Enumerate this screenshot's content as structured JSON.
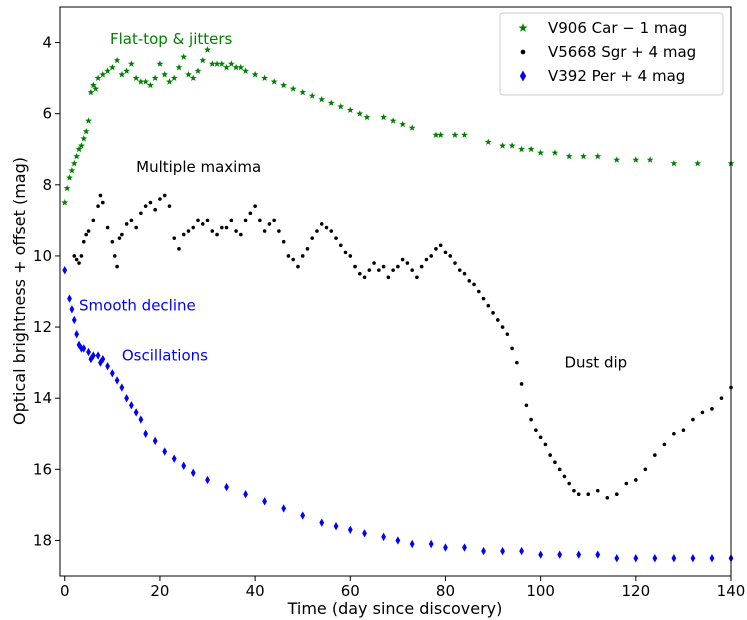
{
  "chart_data": {
    "type": "scatter",
    "xlabel": "Time (day since discovery)",
    "ylabel": "Optical brightness + offset (mag)",
    "xlim": [
      -1,
      140
    ],
    "ylim": [
      19.0,
      3.0
    ],
    "y_inverted": true,
    "xticks": [
      0,
      20,
      40,
      60,
      80,
      100,
      120,
      140
    ],
    "yticks": [
      4,
      6,
      8,
      10,
      12,
      14,
      16,
      18
    ],
    "grid": false,
    "legend_position": "top-right",
    "annotations": [
      {
        "text": "Flat-top & jitters",
        "x": 9.5,
        "y": 3.9,
        "color": "#008000"
      },
      {
        "text": "Multiple maxima",
        "x": 15,
        "y": 7.5,
        "color": "#000000"
      },
      {
        "text": "Smooth decline",
        "x": 3,
        "y": 11.4,
        "color": "#0000ff"
      },
      {
        "text": "Oscillations",
        "x": 12,
        "y": 12.8,
        "color": "#0000ff"
      },
      {
        "text": "Dust dip",
        "x": 105,
        "y": 13.0,
        "color": "#000000"
      }
    ],
    "series": [
      {
        "name": "V906 Car − 1 mag",
        "marker": "star",
        "color": "#008000",
        "x": [
          0,
          0.5,
          1,
          1.5,
          2,
          2.5,
          3,
          3.5,
          4,
          4.5,
          5,
          5.5,
          6,
          6.5,
          7,
          8,
          9,
          10,
          11,
          12,
          13,
          14,
          15,
          16,
          17,
          18,
          19,
          20,
          21,
          22,
          23,
          24,
          25,
          26,
          27,
          28,
          29,
          30,
          31,
          32,
          33,
          34,
          35,
          36,
          37,
          38,
          40,
          42,
          44,
          46,
          48,
          50,
          52,
          54,
          56,
          58,
          60,
          62,
          63.5,
          67,
          69,
          71,
          73,
          78,
          79,
          82,
          84,
          89,
          92,
          94,
          96,
          98,
          100,
          103,
          106,
          109,
          112,
          116,
          120,
          123,
          128,
          133,
          140
        ],
        "y": [
          8.5,
          8.1,
          7.8,
          7.6,
          7.4,
          7.2,
          7.0,
          6.9,
          6.7,
          6.5,
          6.2,
          5.4,
          5.2,
          5.3,
          5.0,
          4.9,
          4.8,
          4.7,
          4.5,
          4.9,
          4.8,
          4.6,
          5.0,
          5.1,
          5.1,
          5.2,
          5.0,
          4.6,
          4.9,
          5.1,
          5.0,
          4.7,
          4.4,
          4.9,
          5.0,
          4.8,
          4.5,
          4.2,
          4.6,
          4.6,
          4.6,
          4.7,
          4.6,
          4.7,
          4.7,
          4.8,
          4.9,
          5.0,
          5.1,
          5.2,
          5.3,
          5.4,
          5.5,
          5.6,
          5.7,
          5.8,
          5.9,
          6.0,
          6.1,
          6.1,
          6.2,
          6.3,
          6.4,
          6.6,
          6.6,
          6.6,
          6.6,
          6.8,
          6.9,
          6.9,
          7.0,
          7.0,
          7.1,
          7.1,
          7.2,
          7.2,
          7.2,
          7.3,
          7.3,
          7.3,
          7.4,
          7.4,
          7.4
        ]
      },
      {
        "name": "V5668 Sgr + 4 mag",
        "marker": "point",
        "color": "#000000",
        "x": [
          2,
          2.5,
          3,
          3.5,
          4,
          4.5,
          5,
          6,
          7,
          7.5,
          8,
          9,
          10,
          10.5,
          11,
          11.5,
          12,
          13,
          14,
          15,
          16,
          17,
          18,
          19,
          20,
          21,
          22,
          23,
          24,
          25,
          26,
          27,
          28,
          29,
          30,
          31,
          32,
          33,
          34,
          35,
          36,
          37,
          38,
          39,
          40,
          41,
          42,
          43,
          44,
          45,
          46,
          47,
          48,
          49,
          50,
          51,
          52,
          53,
          54,
          55,
          56,
          57,
          58,
          59,
          60,
          61,
          62,
          63,
          64,
          65,
          66,
          67,
          68,
          69,
          70,
          71,
          72,
          73,
          74,
          75,
          76,
          77,
          78,
          79,
          80,
          81,
          82,
          83,
          84,
          85,
          86,
          87,
          88,
          89,
          90,
          91,
          92,
          93,
          94,
          95,
          96,
          97,
          98,
          99,
          100,
          101,
          102,
          103,
          104,
          105,
          106,
          107,
          108,
          110,
          112,
          114,
          116,
          118,
          120,
          122,
          124,
          126,
          128,
          130,
          132,
          134,
          136,
          138,
          140
        ],
        "y": [
          10.0,
          10.1,
          10.2,
          10.0,
          9.6,
          9.4,
          9.3,
          9.0,
          8.6,
          8.3,
          8.5,
          9.2,
          9.6,
          10.0,
          10.3,
          9.5,
          9.4,
          9.1,
          9.0,
          9.2,
          8.8,
          8.6,
          8.5,
          8.7,
          8.4,
          8.3,
          8.6,
          9.5,
          9.8,
          9.4,
          9.3,
          9.2,
          9.0,
          9.1,
          9.0,
          9.3,
          9.4,
          9.2,
          9.2,
          9.0,
          9.3,
          9.4,
          9.0,
          8.8,
          8.6,
          9.0,
          9.3,
          9.1,
          9.0,
          9.3,
          9.6,
          10.0,
          10.1,
          10.3,
          10.0,
          9.8,
          9.5,
          9.3,
          9.1,
          9.2,
          9.3,
          9.5,
          9.7,
          9.9,
          10.0,
          10.3,
          10.5,
          10.6,
          10.4,
          10.2,
          10.4,
          10.3,
          10.6,
          10.4,
          10.3,
          10.1,
          10.2,
          10.4,
          10.6,
          10.3,
          10.1,
          10.0,
          9.8,
          9.7,
          9.9,
          10.0,
          10.2,
          10.4,
          10.5,
          10.7,
          10.8,
          11.0,
          11.2,
          11.4,
          11.6,
          11.8,
          12.0,
          12.2,
          12.6,
          13.0,
          13.6,
          14.2,
          14.6,
          14.9,
          15.1,
          15.3,
          15.6,
          15.8,
          16.0,
          16.2,
          16.4,
          16.6,
          16.7,
          16.7,
          16.6,
          16.8,
          16.7,
          16.4,
          16.3,
          16.0,
          15.6,
          15.3,
          15.0,
          14.9,
          14.6,
          14.4,
          14.3,
          14.0,
          13.7
        ]
      },
      {
        "name": "V392 Per + 4 mag",
        "marker": "thin_diamond",
        "color": "#0000ff",
        "x": [
          0,
          1,
          1.5,
          2,
          2.5,
          3,
          3.5,
          4,
          5,
          5.5,
          6,
          7,
          7.5,
          8,
          9,
          10,
          11,
          12,
          13,
          14,
          15,
          16,
          17,
          19,
          21,
          23,
          25,
          27,
          30,
          34,
          38,
          42,
          46,
          50,
          54,
          57,
          60,
          63,
          67,
          70,
          73,
          77,
          80,
          84,
          88,
          92,
          96,
          100,
          104,
          108,
          112,
          116,
          120,
          124,
          128,
          132,
          136,
          140
        ],
        "y": [
          10.4,
          11.2,
          11.5,
          11.8,
          12.2,
          12.5,
          12.6,
          12.6,
          12.7,
          12.9,
          12.8,
          12.8,
          13.0,
          12.9,
          13.1,
          13.3,
          13.5,
          13.7,
          14.0,
          14.2,
          14.4,
          14.6,
          15.0,
          15.2,
          15.5,
          15.7,
          15.9,
          16.1,
          16.3,
          16.5,
          16.7,
          16.9,
          17.1,
          17.3,
          17.5,
          17.6,
          17.7,
          17.8,
          17.9,
          18.0,
          18.1,
          18.1,
          18.2,
          18.2,
          18.3,
          18.3,
          18.3,
          18.4,
          18.4,
          18.4,
          18.4,
          18.5,
          18.5,
          18.5,
          18.5,
          18.5,
          18.5,
          18.5
        ]
      }
    ]
  }
}
